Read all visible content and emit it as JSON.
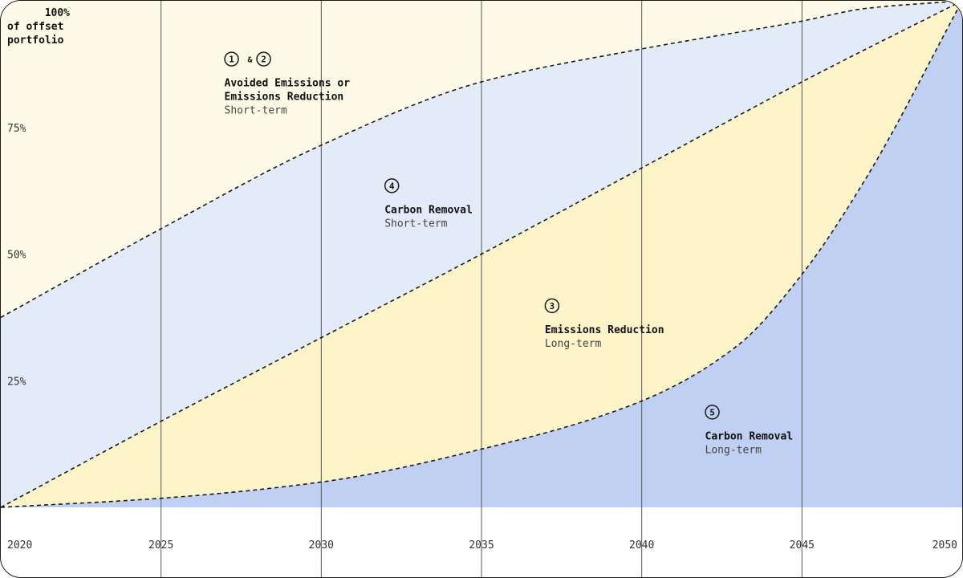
{
  "chart_data": {
    "type": "area",
    "x": [
      2020,
      2025,
      2030,
      2035,
      2040,
      2045,
      2050
    ],
    "xlim": [
      2020,
      2050
    ],
    "ylim": [
      0,
      100
    ],
    "x_ticks": [
      "2020",
      "2025",
      "2030",
      "2035",
      "2040",
      "2045",
      "2050"
    ],
    "y_ticks": [
      {
        "value": 25,
        "label": "25%"
      },
      {
        "value": 50,
        "label": "50%"
      },
      {
        "value": 75,
        "label": "75%"
      }
    ],
    "y_title_lines": [
      "100%",
      "of offset",
      "portfolio"
    ],
    "grid": "vertical",
    "boundaries": [
      {
        "id": "cr-long-top",
        "x": [
          2020,
          2025,
          2030,
          2035,
          2040,
          2043,
          2045,
          2047,
          2050
        ],
        "y": [
          0,
          1.8,
          5,
          11.5,
          21,
          32,
          46,
          65,
          100
        ]
      },
      {
        "id": "er-long-top",
        "x": [
          2020,
          2025,
          2030,
          2035,
          2040,
          2045,
          2050
        ],
        "y": [
          0,
          17,
          33.5,
          50,
          67,
          84,
          100
        ]
      },
      {
        "id": "cr-short-top",
        "x": [
          2020,
          2025,
          2030,
          2035,
          2040,
          2045,
          2047,
          2050
        ],
        "y": [
          37.5,
          55,
          71.5,
          84,
          90.5,
          96,
          98.5,
          100
        ]
      }
    ],
    "regions": [
      {
        "id": "avoided-short",
        "between": [
          "cr-short-top",
          "top"
        ],
        "color": "#fdfbe8"
      },
      {
        "id": "carbon-removal-short",
        "between": [
          "er-long-top",
          "cr-short-top"
        ],
        "color": "#e3ebf9"
      },
      {
        "id": "emissions-reduction-long",
        "between": [
          "cr-long-top",
          "er-long-top"
        ],
        "color": "#fdf5c9"
      },
      {
        "id": "carbon-removal-long",
        "between": [
          "bottom",
          "cr-long-top"
        ],
        "color": "#bfd0f2"
      }
    ],
    "annotations": [
      {
        "id": "avoided",
        "badges": [
          "1",
          "2"
        ],
        "joiner": "&",
        "title_lines": [
          "Avoided Emissions or",
          "Emissions Reduction"
        ],
        "subtitle": "Short-term",
        "x": 2026.95,
        "y": 88.5
      },
      {
        "id": "carbon-removal-short",
        "badges": [
          "4"
        ],
        "title_lines": [
          "Carbon Removal"
        ],
        "subtitle": "Short-term",
        "x": 2031.95,
        "y": 63.5
      },
      {
        "id": "emissions-reduction-long",
        "badges": [
          "3"
        ],
        "title_lines": [
          "Emissions Reduction"
        ],
        "subtitle": "Long-term",
        "x": 2036.95,
        "y": 39.8
      },
      {
        "id": "carbon-removal-long",
        "badges": [
          "5"
        ],
        "title_lines": [
          "Carbon Removal"
        ],
        "subtitle": "Long-term",
        "x": 2041.95,
        "y": 18.8
      }
    ]
  },
  "colors": {
    "line": "#1a1a1a",
    "grid": "#555555",
    "tick_text": "#333333"
  }
}
